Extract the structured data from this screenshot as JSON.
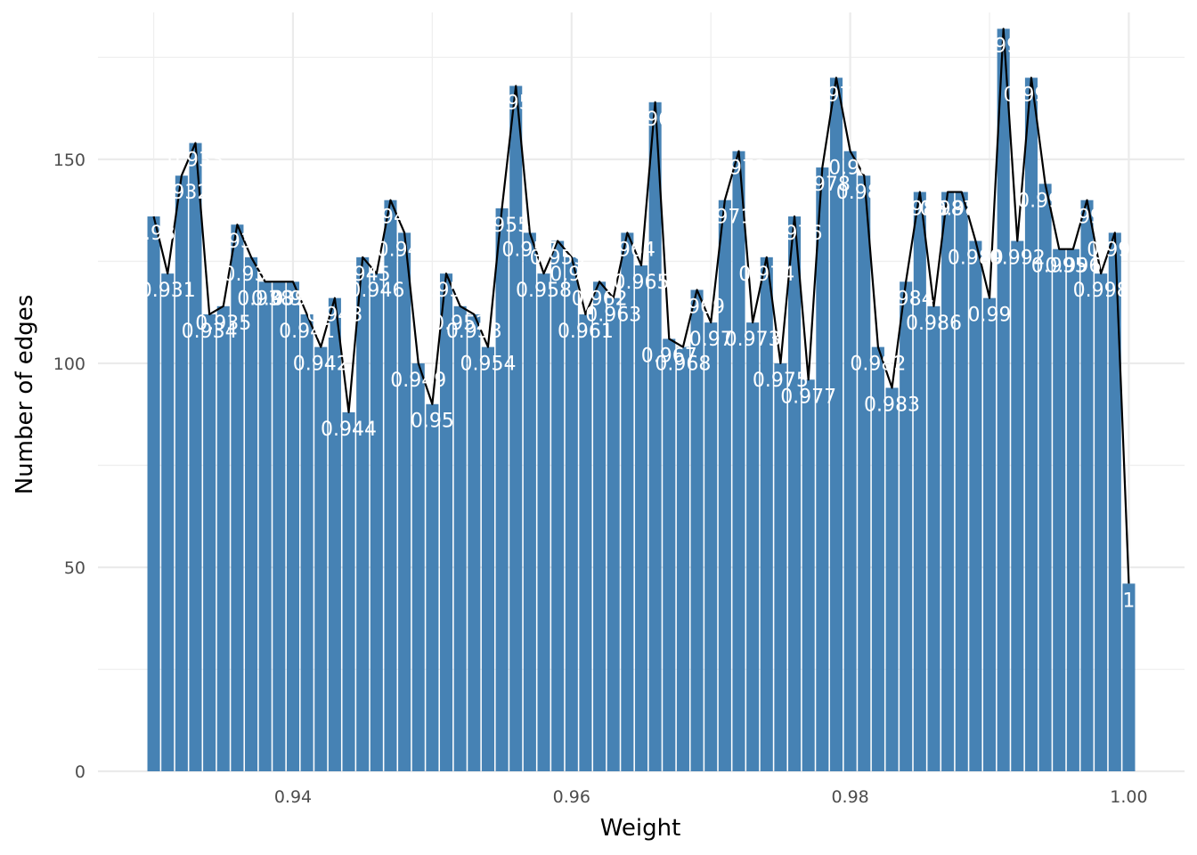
{
  "chart_data": {
    "type": "bar",
    "xlabel": "Weight",
    "ylabel": "Number of edges",
    "xlim": [
      0.926,
      1.004
    ],
    "ylim": [
      0,
      186
    ],
    "x_ticks": [
      0.94,
      0.96,
      0.98,
      1.0
    ],
    "x_tick_labels": [
      "0.94",
      "0.96",
      "0.98",
      "1.00"
    ],
    "y_ticks": [
      0,
      50,
      100,
      150
    ],
    "y_tick_labels": [
      "0",
      "50",
      "100",
      "150"
    ],
    "grid": true,
    "overlay": "line connecting bar tops",
    "bar_color": "#4682b4",
    "line_color": "#000000",
    "label_color": "#ffffff",
    "x": [
      0.93,
      0.931,
      0.932,
      0.933,
      0.934,
      0.935,
      0.936,
      0.937,
      0.938,
      0.939,
      0.94,
      0.941,
      0.942,
      0.943,
      0.944,
      0.945,
      0.946,
      0.947,
      0.948,
      0.949,
      0.95,
      0.951,
      0.952,
      0.953,
      0.954,
      0.955,
      0.956,
      0.957,
      0.958,
      0.959,
      0.96,
      0.961,
      0.962,
      0.963,
      0.964,
      0.965,
      0.966,
      0.967,
      0.968,
      0.969,
      0.97,
      0.971,
      0.972,
      0.973,
      0.974,
      0.975,
      0.976,
      0.977,
      0.978,
      0.979,
      0.98,
      0.981,
      0.982,
      0.983,
      0.984,
      0.985,
      0.986,
      0.987,
      0.988,
      0.989,
      0.99,
      0.991,
      0.992,
      0.993,
      0.994,
      0.995,
      0.996,
      0.997,
      0.998,
      0.999,
      1.0
    ],
    "values": [
      136,
      122,
      146,
      154,
      112,
      114,
      134,
      126,
      120,
      120,
      120,
      112,
      104,
      116,
      88,
      126,
      122,
      140,
      132,
      100,
      90,
      122,
      114,
      112,
      104,
      138,
      168,
      132,
      122,
      130,
      126,
      112,
      120,
      116,
      132,
      124,
      164,
      106,
      104,
      118,
      110,
      140,
      152,
      110,
      126,
      100,
      136,
      96,
      148,
      170,
      152,
      146,
      104,
      94,
      120,
      142,
      114,
      142,
      142,
      130,
      116,
      182,
      130,
      170,
      144,
      128,
      128,
      140,
      122,
      132,
      46
    ],
    "data_labels": [
      "0.93",
      "0.931",
      "0.932",
      "0.933",
      "0.934",
      "0.935",
      "0.936",
      "0.937",
      "0.938",
      "0.939",
      "0.94",
      "0.941",
      "0.942",
      "0.943",
      "0.944",
      "0.945",
      "0.946",
      "0.947",
      "0.948",
      "0.949",
      "0.95",
      "0.951",
      "0.952",
      "0.953",
      "0.954",
      "0.955",
      "0.956",
      "0.957",
      "0.958",
      "0.959",
      "0.96",
      "0.961",
      "0.962",
      "0.963",
      "0.964",
      "0.965",
      "0.966",
      "0.967",
      "0.968",
      "0.969",
      "0.97",
      "0.971",
      "0.972",
      "0.973",
      "0.974",
      "0.975",
      "0.976",
      "0.977",
      "0.978",
      "0.979",
      "0.98",
      "0.981",
      "0.982",
      "0.983",
      "0.984",
      "0.985",
      "0.986",
      "0.987",
      "0.988",
      "0.989",
      "0.99",
      "0.991",
      "0.992",
      "0.993",
      "0.994",
      "0.995",
      "0.996",
      "0.997",
      "0.998",
      "0.999",
      "1"
    ]
  }
}
